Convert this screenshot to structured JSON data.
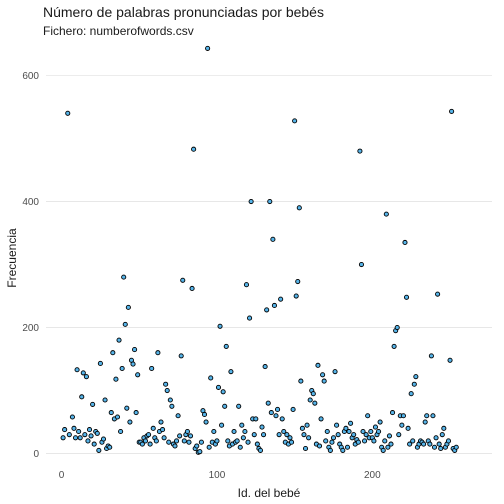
{
  "chart_data": {
    "type": "scatter",
    "title": "Número de palabras pronunciadas por bebés",
    "subtitle": "Fichero: numberofwords.csv",
    "xlabel": "Id. del bebé",
    "ylabel": "Frecuencia",
    "xlim": [
      -10,
      277
    ],
    "ylim": [
      -15,
      650
    ],
    "x_ticks": [
      0,
      100,
      200
    ],
    "y_ticks": [
      0,
      200,
      400,
      600
    ],
    "grid": "horizontal",
    "point_color": "#56B4E9",
    "point_edge_color": "#000000",
    "points": [
      [
        1,
        25
      ],
      [
        2,
        38
      ],
      [
        4,
        540
      ],
      [
        5,
        30
      ],
      [
        7,
        58
      ],
      [
        8,
        40
      ],
      [
        9,
        25
      ],
      [
        10,
        133
      ],
      [
        11,
        35
      ],
      [
        12,
        25
      ],
      [
        13,
        90
      ],
      [
        14,
        128
      ],
      [
        15,
        30
      ],
      [
        16,
        122
      ],
      [
        17,
        20
      ],
      [
        18,
        38
      ],
      [
        19,
        28
      ],
      [
        20,
        78
      ],
      [
        21,
        15
      ],
      [
        22,
        35
      ],
      [
        23,
        32
      ],
      [
        24,
        5
      ],
      [
        25,
        143
      ],
      [
        26,
        18
      ],
      [
        27,
        23
      ],
      [
        28,
        85
      ],
      [
        29,
        8
      ],
      [
        30,
        12
      ],
      [
        31,
        10
      ],
      [
        32,
        65
      ],
      [
        33,
        160
      ],
      [
        34,
        55
      ],
      [
        35,
        118
      ],
      [
        36,
        58
      ],
      [
        37,
        180
      ],
      [
        38,
        35
      ],
      [
        39,
        135
      ],
      [
        40,
        280
      ],
      [
        41,
        205
      ],
      [
        42,
        72
      ],
      [
        43,
        232
      ],
      [
        44,
        50
      ],
      [
        45,
        148
      ],
      [
        46,
        142
      ],
      [
        47,
        165
      ],
      [
        48,
        65
      ],
      [
        49,
        125
      ],
      [
        50,
        18
      ],
      [
        51,
        18
      ],
      [
        52,
        15
      ],
      [
        53,
        25
      ],
      [
        54,
        20
      ],
      [
        55,
        28
      ],
      [
        56,
        30
      ],
      [
        57,
        15
      ],
      [
        58,
        135
      ],
      [
        59,
        40
      ],
      [
        60,
        25
      ],
      [
        61,
        20
      ],
      [
        62,
        160
      ],
      [
        63,
        35
      ],
      [
        64,
        50
      ],
      [
        65,
        38
      ],
      [
        66,
        25
      ],
      [
        67,
        110
      ],
      [
        68,
        100
      ],
      [
        69,
        18
      ],
      [
        70,
        85
      ],
      [
        71,
        75
      ],
      [
        72,
        15
      ],
      [
        73,
        12
      ],
      [
        74,
        20
      ],
      [
        75,
        60
      ],
      [
        76,
        28
      ],
      [
        77,
        155
      ],
      [
        78,
        275
      ],
      [
        79,
        20
      ],
      [
        80,
        30
      ],
      [
        81,
        35
      ],
      [
        82,
        18
      ],
      [
        83,
        28
      ],
      [
        84,
        262
      ],
      [
        85,
        483
      ],
      [
        86,
        8
      ],
      [
        87,
        12
      ],
      [
        88,
        2
      ],
      [
        89,
        3
      ],
      [
        90,
        18
      ],
      [
        91,
        68
      ],
      [
        92,
        62
      ],
      [
        93,
        50
      ],
      [
        94,
        643
      ],
      [
        95,
        10
      ],
      [
        96,
        120
      ],
      [
        97,
        18
      ],
      [
        98,
        35
      ],
      [
        99,
        15
      ],
      [
        100,
        20
      ],
      [
        101,
        105
      ],
      [
        102,
        202
      ],
      [
        103,
        45
      ],
      [
        104,
        98
      ],
      [
        105,
        75
      ],
      [
        106,
        170
      ],
      [
        107,
        20
      ],
      [
        108,
        12
      ],
      [
        109,
        130
      ],
      [
        110,
        15
      ],
      [
        111,
        35
      ],
      [
        112,
        18
      ],
      [
        113,
        20
      ],
      [
        114,
        75
      ],
      [
        115,
        10
      ],
      [
        116,
        45
      ],
      [
        117,
        25
      ],
      [
        118,
        35
      ],
      [
        119,
        268
      ],
      [
        120,
        18
      ],
      [
        121,
        215
      ],
      [
        122,
        400
      ],
      [
        123,
        55
      ],
      [
        124,
        30
      ],
      [
        125,
        55
      ],
      [
        126,
        15
      ],
      [
        127,
        8
      ],
      [
        128,
        5
      ],
      [
        129,
        42
      ],
      [
        130,
        30
      ],
      [
        131,
        138
      ],
      [
        132,
        228
      ],
      [
        133,
        80
      ],
      [
        134,
        400
      ],
      [
        135,
        65
      ],
      [
        136,
        340
      ],
      [
        137,
        235
      ],
      [
        138,
        60
      ],
      [
        139,
        70
      ],
      [
        140,
        30
      ],
      [
        141,
        245
      ],
      [
        142,
        55
      ],
      [
        143,
        35
      ],
      [
        144,
        18
      ],
      [
        145,
        30
      ],
      [
        146,
        15
      ],
      [
        147,
        25
      ],
      [
        148,
        18
      ],
      [
        149,
        70
      ],
      [
        150,
        528
      ],
      [
        151,
        250
      ],
      [
        152,
        273
      ],
      [
        153,
        390
      ],
      [
        154,
        115
      ],
      [
        155,
        40
      ],
      [
        156,
        30
      ],
      [
        157,
        8
      ],
      [
        158,
        45
      ],
      [
        159,
        25
      ],
      [
        160,
        85
      ],
      [
        161,
        100
      ],
      [
        162,
        95
      ],
      [
        163,
        80
      ],
      [
        164,
        15
      ],
      [
        165,
        140
      ],
      [
        166,
        12
      ],
      [
        167,
        55
      ],
      [
        168,
        125
      ],
      [
        169,
        115
      ],
      [
        170,
        20
      ],
      [
        171,
        35
      ],
      [
        172,
        10
      ],
      [
        173,
        5
      ],
      [
        174,
        18
      ],
      [
        175,
        25
      ],
      [
        176,
        130
      ],
      [
        177,
        45
      ],
      [
        178,
        30
      ],
      [
        179,
        15
      ],
      [
        180,
        10
      ],
      [
        181,
        5
      ],
      [
        182,
        35
      ],
      [
        183,
        40
      ],
      [
        184,
        10
      ],
      [
        185,
        35
      ],
      [
        186,
        48
      ],
      [
        187,
        25
      ],
      [
        188,
        30
      ],
      [
        189,
        15
      ],
      [
        190,
        22
      ],
      [
        191,
        18
      ],
      [
        192,
        480
      ],
      [
        193,
        300
      ],
      [
        194,
        35
      ],
      [
        195,
        20
      ],
      [
        196,
        30
      ],
      [
        197,
        60
      ],
      [
        198,
        25
      ],
      [
        199,
        35
      ],
      [
        200,
        25
      ],
      [
        201,
        20
      ],
      [
        202,
        42
      ],
      [
        203,
        30
      ],
      [
        204,
        35
      ],
      [
        205,
        50
      ],
      [
        206,
        10
      ],
      [
        207,
        5
      ],
      [
        208,
        20
      ],
      [
        209,
        380
      ],
      [
        210,
        10
      ],
      [
        211,
        28
      ],
      [
        212,
        15
      ],
      [
        213,
        65
      ],
      [
        214,
        170
      ],
      [
        215,
        195
      ],
      [
        216,
        200
      ],
      [
        217,
        30
      ],
      [
        218,
        60
      ],
      [
        219,
        45
      ],
      [
        220,
        60
      ],
      [
        221,
        335
      ],
      [
        222,
        248
      ],
      [
        223,
        40
      ],
      [
        224,
        15
      ],
      [
        225,
        95
      ],
      [
        226,
        20
      ],
      [
        227,
        110
      ],
      [
        228,
        122
      ],
      [
        229,
        10
      ],
      [
        230,
        15
      ],
      [
        231,
        20
      ],
      [
        232,
        18
      ],
      [
        233,
        15
      ],
      [
        234,
        50
      ],
      [
        235,
        60
      ],
      [
        236,
        20
      ],
      [
        237,
        15
      ],
      [
        238,
        155
      ],
      [
        239,
        60
      ],
      [
        240,
        10
      ],
      [
        241,
        25
      ],
      [
        242,
        253
      ],
      [
        243,
        15
      ],
      [
        244,
        8
      ],
      [
        245,
        30
      ],
      [
        246,
        40
      ],
      [
        247,
        10
      ],
      [
        248,
        15
      ],
      [
        249,
        20
      ],
      [
        250,
        148
      ],
      [
        251,
        543
      ],
      [
        252,
        8
      ],
      [
        253,
        5
      ],
      [
        254,
        10
      ]
    ]
  }
}
